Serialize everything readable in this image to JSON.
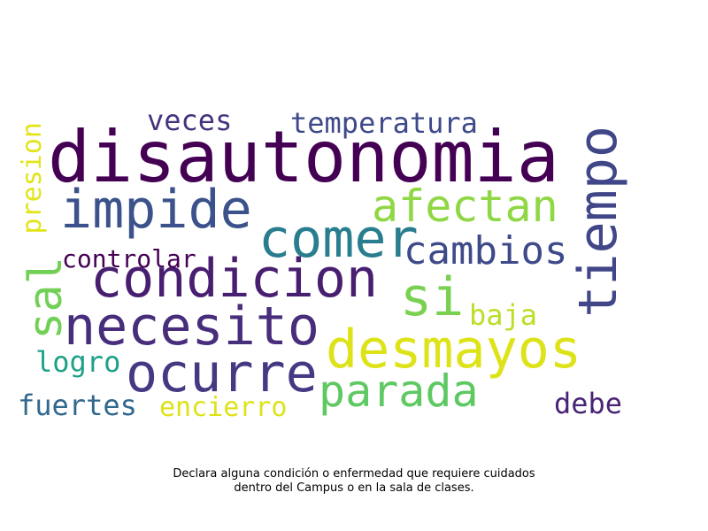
{
  "words": {
    "disautonomia": {
      "text": "disautonomia",
      "color": "#440154"
    },
    "impide": {
      "text": "impide",
      "color": "#3b528b"
    },
    "afectan": {
      "text": "afectan",
      "color": "#8fd744"
    },
    "comer": {
      "text": "comer",
      "color": "#287d8e"
    },
    "condicion": {
      "text": "condicion",
      "color": "#481f70"
    },
    "necesito": {
      "text": "necesito",
      "color": "#472d7b"
    },
    "desmayos": {
      "text": "desmayos",
      "color": "#dde318"
    },
    "ocurre": {
      "text": "ocurre",
      "color": "#443983"
    },
    "parada": {
      "text": "parada",
      "color": "#5ec962"
    },
    "tiempo": {
      "text": "tiempo",
      "color": "#404688"
    },
    "cambios": {
      "text": "cambios",
      "color": "#3e4a89"
    },
    "si": {
      "text": "si",
      "color": "#7ad151"
    },
    "sal": {
      "text": "sal",
      "color": "#73d056"
    },
    "presion": {
      "text": "presion",
      "color": "#e2e418"
    },
    "veces": {
      "text": "veces",
      "color": "#46337e"
    },
    "temperatura": {
      "text": "temperatura",
      "color": "#3e4989"
    },
    "controlar": {
      "text": "controlar",
      "color": "#440154"
    },
    "baja": {
      "text": "baja",
      "color": "#bade28"
    },
    "logro": {
      "text": "logro",
      "color": "#1fa188"
    },
    "fuertes": {
      "text": "fuertes",
      "color": "#31688e"
    },
    "encierro": {
      "text": "encierro",
      "color": "#dde318"
    },
    "debe": {
      "text": "debe",
      "color": "#482475"
    }
  },
  "caption": {
    "line1": "Declara alguna condición o enfermedad que requiere cuidados",
    "line2": "dentro del Campus o en la sala de clases."
  }
}
